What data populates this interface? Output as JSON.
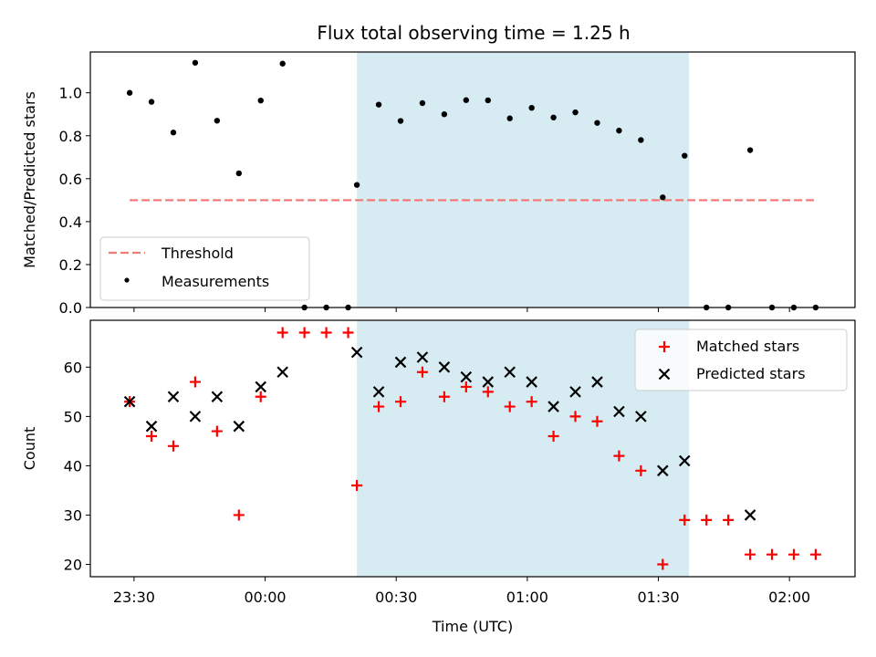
{
  "title": "Flux total observing time = 1.25 h",
  "chart_data": [
    {
      "type": "scatter",
      "panel": "top",
      "ylabel": "Matched/Predicted stars",
      "ylim": [
        0,
        1.19
      ],
      "yticks": [
        0.0,
        0.2,
        0.4,
        0.6,
        0.8,
        1.0
      ],
      "ytick_labels": [
        "0.0",
        "0.2",
        "0.4",
        "0.6",
        "0.8",
        "1.0"
      ],
      "highlight_span": [
        "00:21",
        "01:37"
      ],
      "threshold": {
        "name": "Threshold",
        "value": 0.5,
        "x_start": "23:29",
        "x_end": "02:06",
        "color": "#f47a7a"
      },
      "legend": {
        "position": "lower-left",
        "entries": [
          "Threshold",
          "Measurements"
        ]
      },
      "series": [
        {
          "name": "Measurements",
          "marker": "dot",
          "color": "#000000",
          "x": [
            "23:29",
            "23:34",
            "23:39",
            "23:44",
            "23:49",
            "23:54",
            "23:59",
            "00:04",
            "00:09",
            "00:14",
            "00:19",
            "00:21",
            "00:26",
            "00:31",
            "00:36",
            "00:41",
            "00:46",
            "00:51",
            "00:56",
            "01:01",
            "01:06",
            "01:11",
            "01:16",
            "01:21",
            "01:26",
            "01:31",
            "01:36",
            "01:41",
            "01:46",
            "01:51",
            "01:56",
            "02:01",
            "02:06"
          ],
          "y": [
            1.0,
            0.958,
            0.815,
            1.14,
            0.87,
            0.625,
            0.964,
            1.136,
            0.0,
            0.0,
            0.0,
            0.571,
            0.945,
            0.869,
            0.952,
            0.9,
            0.966,
            0.965,
            0.881,
            0.93,
            0.885,
            0.909,
            0.86,
            0.824,
            0.78,
            0.513,
            0.707,
            0.0,
            0.0,
            0.733,
            0.0,
            0.0,
            0.0
          ]
        }
      ]
    },
    {
      "type": "scatter",
      "panel": "bottom",
      "xlabel": "Time (UTC)",
      "ylabel": "Count",
      "ylim": [
        17.5,
        69.5
      ],
      "yticks": [
        20,
        30,
        40,
        50,
        60
      ],
      "ytick_labels": [
        "20",
        "30",
        "40",
        "50",
        "60"
      ],
      "xlim": [
        "23:20",
        "02:15"
      ],
      "xticks": [
        "23:30",
        "00:00",
        "00:30",
        "01:00",
        "01:30",
        "02:00"
      ],
      "highlight_span": [
        "00:21",
        "01:37"
      ],
      "legend": {
        "position": "top-right",
        "entries": [
          "Matched stars",
          "Predicted stars"
        ]
      },
      "series": [
        {
          "name": "Matched stars",
          "marker": "plus",
          "color": "#ff0000",
          "x": [
            "23:29",
            "23:34",
            "23:39",
            "23:44",
            "23:49",
            "23:54",
            "23:59",
            "00:04",
            "00:09",
            "00:14",
            "00:19",
            "00:21",
            "00:26",
            "00:31",
            "00:36",
            "00:41",
            "00:46",
            "00:51",
            "00:56",
            "01:01",
            "01:06",
            "01:11",
            "01:16",
            "01:21",
            "01:26",
            "01:31",
            "01:36",
            "01:41",
            "01:46",
            "01:51",
            "01:56",
            "02:01",
            "02:06"
          ],
          "y": [
            53,
            46,
            44,
            57,
            47,
            30,
            54,
            67,
            67,
            67,
            67,
            36,
            52,
            53,
            59,
            54,
            56,
            55,
            52,
            53,
            46,
            50,
            49,
            42,
            39,
            20,
            29,
            29,
            29,
            22,
            22,
            22,
            22
          ]
        },
        {
          "name": "Predicted stars",
          "marker": "x",
          "color": "#000000",
          "x": [
            "23:29",
            "23:34",
            "23:39",
            "23:44",
            "23:49",
            "23:54",
            "23:59",
            "00:04",
            "00:21",
            "00:26",
            "00:31",
            "00:36",
            "00:41",
            "00:46",
            "00:51",
            "00:56",
            "01:01",
            "01:06",
            "01:11",
            "01:16",
            "01:21",
            "01:26",
            "01:31",
            "01:36",
            "01:51"
          ],
          "y": [
            53,
            48,
            54,
            50,
            54,
            48,
            56,
            59,
            63,
            55,
            61,
            62,
            60,
            58,
            57,
            59,
            57,
            52,
            55,
            57,
            51,
            50,
            39,
            41,
            30
          ]
        }
      ]
    }
  ],
  "colors": {
    "span_fill": "#add8e6",
    "threshold": "#f47a7a",
    "matched": "#ff0000",
    "predicted": "#000000"
  }
}
